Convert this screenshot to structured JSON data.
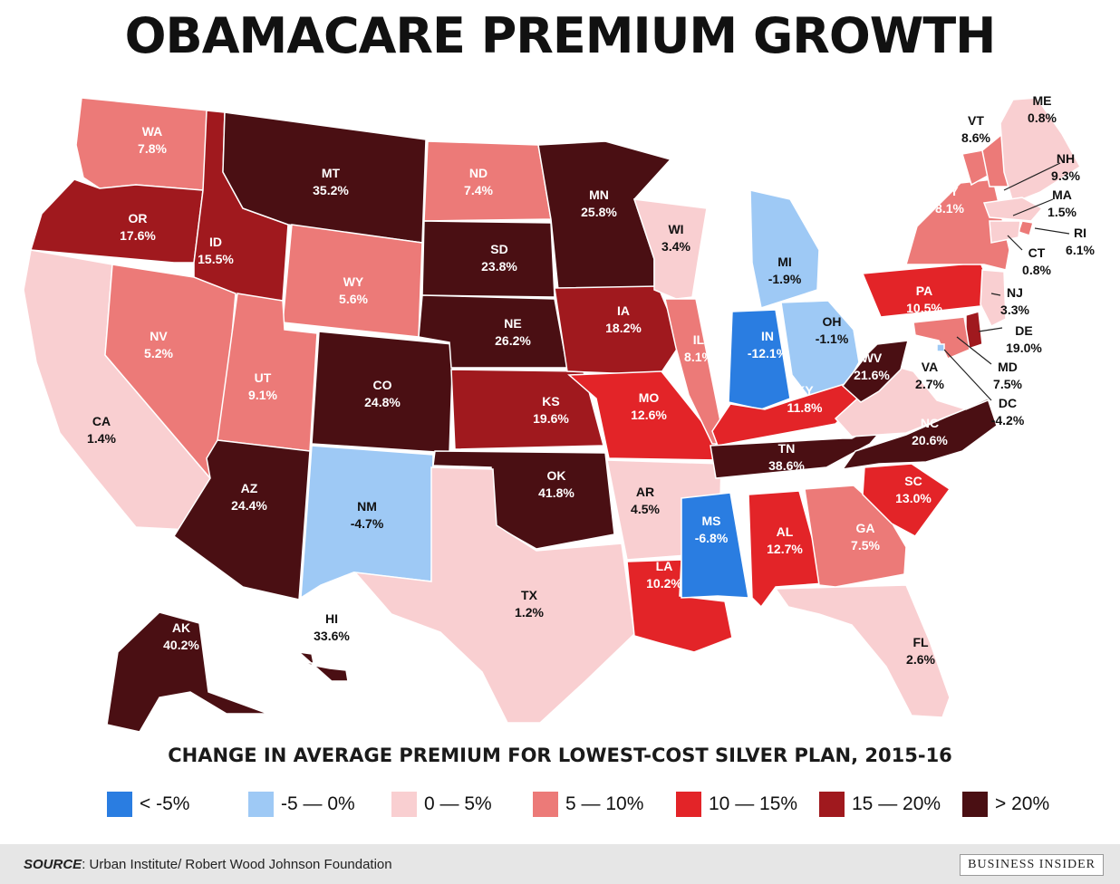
{
  "title": "OBAMACARE PREMIUM GROWTH",
  "subtitle": "CHANGE IN AVERAGE PREMIUM FOR LOWEST-COST SILVER PLAN, 2015-16",
  "colors": {
    "bin1": "#2a7de1",
    "bin2": "#9ec9f5",
    "bin3": "#f9cfd1",
    "bin4": "#ec7a78",
    "bin5": "#e32428",
    "bin6": "#a0191e",
    "bin7": "#4a0f13"
  },
  "legend": [
    {
      "label": "< -5%",
      "color": "#2a7de1"
    },
    {
      "label": "-5 — 0%",
      "color": "#9ec9f5"
    },
    {
      "label": "0 — 5%",
      "color": "#f9cfd1"
    },
    {
      "label": "5 — 10%",
      "color": "#ec7a78"
    },
    {
      "label": "10 — 15%",
      "color": "#e32428"
    },
    {
      "label": "15 — 20%",
      "color": "#a0191e"
    },
    {
      "label": "> 20%",
      "color": "#4a0f13"
    }
  ],
  "states": [
    {
      "abbr": "WA",
      "value": "7.8%",
      "num": 7.8
    },
    {
      "abbr": "OR",
      "value": "17.6%",
      "num": 17.6
    },
    {
      "abbr": "CA",
      "value": "1.4%",
      "num": 1.4
    },
    {
      "abbr": "ID",
      "value": "15.5%",
      "num": 15.5
    },
    {
      "abbr": "NV",
      "value": "5.2%",
      "num": 5.2
    },
    {
      "abbr": "MT",
      "value": "35.2%",
      "num": 35.2
    },
    {
      "abbr": "WY",
      "value": "5.6%",
      "num": 5.6
    },
    {
      "abbr": "UT",
      "value": "9.1%",
      "num": 9.1
    },
    {
      "abbr": "AZ",
      "value": "24.4%",
      "num": 24.4
    },
    {
      "abbr": "CO",
      "value": "24.8%",
      "num": 24.8
    },
    {
      "abbr": "NM",
      "value": "-4.7%",
      "num": -4.7
    },
    {
      "abbr": "ND",
      "value": "7.4%",
      "num": 7.4
    },
    {
      "abbr": "SD",
      "value": "23.8%",
      "num": 23.8
    },
    {
      "abbr": "NE",
      "value": "26.2%",
      "num": 26.2
    },
    {
      "abbr": "KS",
      "value": "19.6%",
      "num": 19.6
    },
    {
      "abbr": "OK",
      "value": "41.8%",
      "num": 41.8
    },
    {
      "abbr": "TX",
      "value": "1.2%",
      "num": 1.2
    },
    {
      "abbr": "MN",
      "value": "25.8%",
      "num": 25.8
    },
    {
      "abbr": "IA",
      "value": "18.2%",
      "num": 18.2
    },
    {
      "abbr": "MO",
      "value": "12.6%",
      "num": 12.6
    },
    {
      "abbr": "AR",
      "value": "4.5%",
      "num": 4.5
    },
    {
      "abbr": "LA",
      "value": "10.2%",
      "num": 10.2
    },
    {
      "abbr": "WI",
      "value": "3.4%",
      "num": 3.4
    },
    {
      "abbr": "IL",
      "value": "8.1%",
      "num": 8.1
    },
    {
      "abbr": "MI",
      "value": "-1.9%",
      "num": -1.9
    },
    {
      "abbr": "IN",
      "value": "-12.1%",
      "num": -12.1
    },
    {
      "abbr": "OH",
      "value": "-1.1%",
      "num": -1.1
    },
    {
      "abbr": "KY",
      "value": "11.8%",
      "num": 11.8
    },
    {
      "abbr": "TN",
      "value": "38.6%",
      "num": 38.6
    },
    {
      "abbr": "MS",
      "value": "-6.8%",
      "num": -6.8
    },
    {
      "abbr": "AL",
      "value": "12.7%",
      "num": 12.7
    },
    {
      "abbr": "GA",
      "value": "7.5%",
      "num": 7.5
    },
    {
      "abbr": "FL",
      "value": "2.6%",
      "num": 2.6
    },
    {
      "abbr": "SC",
      "value": "13.0%",
      "num": 13.0
    },
    {
      "abbr": "NC",
      "value": "20.6%",
      "num": 20.6
    },
    {
      "abbr": "VA",
      "value": "2.7%",
      "num": 2.7
    },
    {
      "abbr": "WV",
      "value": "21.6%",
      "num": 21.6
    },
    {
      "abbr": "PA",
      "value": "10.5%",
      "num": 10.5
    },
    {
      "abbr": "NY",
      "value": "8.1%",
      "num": 8.1
    },
    {
      "abbr": "VT",
      "value": "8.6%",
      "num": 8.6
    },
    {
      "abbr": "NH",
      "value": "9.3%",
      "num": 9.3
    },
    {
      "abbr": "ME",
      "value": "0.8%",
      "num": 0.8
    },
    {
      "abbr": "MA",
      "value": "1.5%",
      "num": 1.5
    },
    {
      "abbr": "RI",
      "value": "6.1%",
      "num": 6.1
    },
    {
      "abbr": "CT",
      "value": "0.8%",
      "num": 0.8
    },
    {
      "abbr": "NJ",
      "value": "3.3%",
      "num": 3.3
    },
    {
      "abbr": "DE",
      "value": "19.0%",
      "num": 19.0
    },
    {
      "abbr": "MD",
      "value": "7.5%",
      "num": 7.5
    },
    {
      "abbr": "DC",
      "value": "-4.2%",
      "num": -4.2
    },
    {
      "abbr": "AK",
      "value": "40.2%",
      "num": 40.2
    },
    {
      "abbr": "HI",
      "value": "33.6%",
      "num": 33.6
    }
  ],
  "footer": {
    "source_label": "SOURCE",
    "source_text": ": Urban Institute/ Robert Wood Johnson Foundation",
    "brand": "BUSINESS INSIDER"
  }
}
